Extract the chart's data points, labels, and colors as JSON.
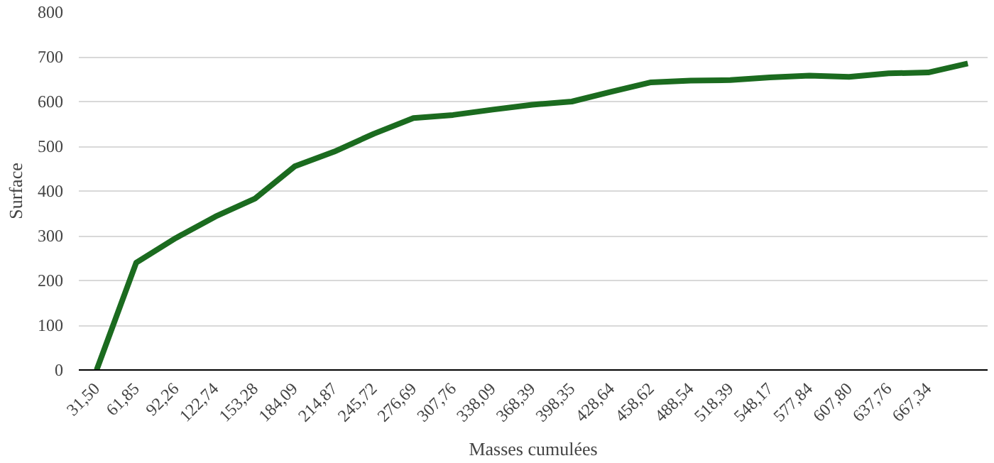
{
  "chart_data": {
    "type": "line",
    "xlabel": "Masses cumulées",
    "ylabel": "Surface",
    "categories": [
      "31,50",
      "61,85",
      "92,26",
      "122,74",
      "153,28",
      "184,09",
      "214,87",
      "245,72",
      "276,69",
      "307,76",
      "338,09",
      "368,39",
      "398,35",
      "428,64",
      "458,62",
      "488,54",
      "518,39",
      "548,17",
      "577,84",
      "607,80",
      "637,76",
      "667,34",
      null
    ],
    "series": [
      {
        "color": "#1b6b1f",
        "values": [
          0,
          240,
          295,
          343,
          383,
          455,
          488,
          528,
          563,
          570,
          582,
          593,
          600,
          622,
          643,
          647,
          648,
          654,
          658,
          655,
          663,
          665,
          685
        ]
      }
    ],
    "ylim": [
      0,
      800
    ],
    "yticks": [
      0,
      100,
      200,
      300,
      400,
      500,
      600,
      700,
      800
    ],
    "grid": "y",
    "marker": "none",
    "line_style": "solid"
  }
}
